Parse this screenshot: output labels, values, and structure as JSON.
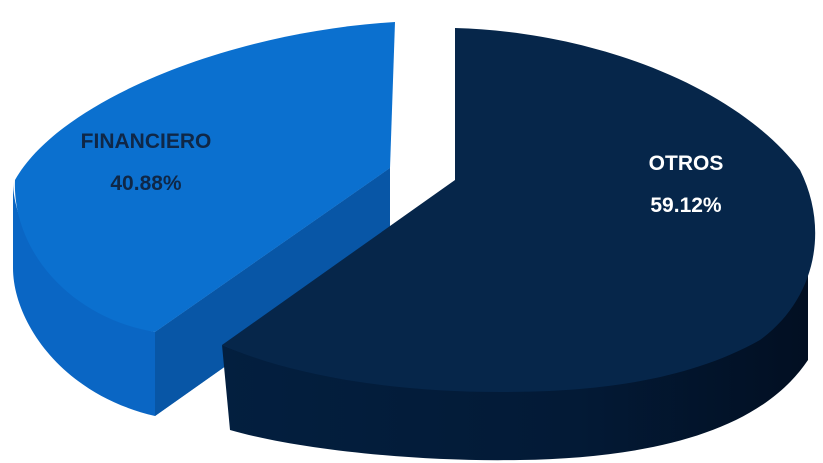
{
  "chart_data": {
    "type": "pie",
    "style": "3d-exploded",
    "slices": [
      {
        "category": "OTROS",
        "value": 59.12,
        "value_label": "59.12%",
        "top_color": "#06264A",
        "side_color": "#031A36",
        "label_color": "#ffffff"
      },
      {
        "category": "FINANCIERO",
        "value": 40.88,
        "value_label": "40.88%",
        "top_color": "#0B70CF",
        "side_color": "#0856A6",
        "label_color": "#0F2747"
      }
    ],
    "legend": "none",
    "background": "#ffffff"
  }
}
